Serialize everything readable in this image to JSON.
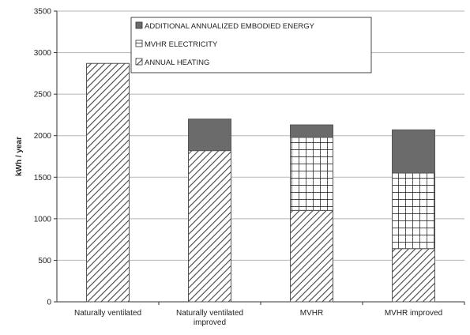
{
  "chart_data": {
    "type": "bar",
    "stacked": true,
    "categories": [
      [
        "Naturally ventilated"
      ],
      [
        "Naturally ventilated",
        "improved"
      ],
      [
        "MVHR"
      ],
      [
        "MVHR improved"
      ]
    ],
    "series": [
      {
        "name": "ANNUAL HEATING",
        "values": [
          2870,
          1820,
          1100,
          640
        ],
        "pattern": "diagonal-hatch",
        "color": "#555555"
      },
      {
        "name": "MVHR ELECTRICITY",
        "values": [
          0,
          0,
          880,
          910
        ],
        "pattern": "grid",
        "color": "#111111"
      },
      {
        "name": "ADDITIONAL ANNUALIZED EMBODIED ENERGY",
        "values": [
          0,
          380,
          150,
          520
        ],
        "pattern": "solid",
        "color": "#6b6b6b"
      }
    ],
    "legend_order": [
      "ADDITIONAL ANNUALIZED EMBODIED ENERGY",
      "MVHR ELECTRICITY",
      "ANNUAL HEATING"
    ],
    "ylabel": "kWh / year",
    "ylim": [
      0,
      3500
    ],
    "yticks": [
      0,
      500,
      1000,
      1500,
      2000,
      2500,
      3000,
      3500
    ],
    "grid": true,
    "legend_position": "top-center"
  }
}
